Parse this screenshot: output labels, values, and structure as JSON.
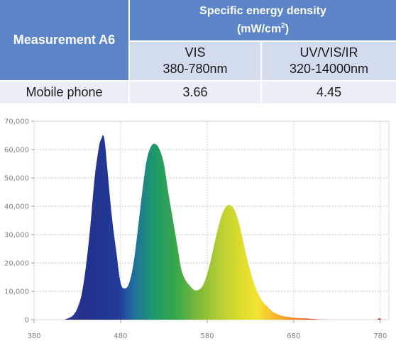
{
  "table": {
    "row_header": "Measurement A6",
    "group_header_line1": "Specific energy density",
    "group_header_line2_prefix": "(mW/cm",
    "group_header_line2_sup": "2",
    "group_header_line2_suffix": ")",
    "col1_line1": "VIS",
    "col1_line2": "380-780nm",
    "col2_line1": "UV/VIS/IR",
    "col2_line2": "320-14000nm",
    "row_label": "Mobile phone",
    "row_val1": "3.66",
    "row_val2": "4.45"
  },
  "colors": {
    "header_blue": "#5b85c8",
    "subheader": "#d2dcec",
    "row_bg": "#eaeff7"
  },
  "chart_data": {
    "type": "area",
    "xlabel": "",
    "ylabel": "",
    "xlim": [
      380,
      790
    ],
    "ylim": [
      0,
      70000
    ],
    "xticks": [
      380,
      480,
      580,
      680,
      780
    ],
    "yticks": [
      0,
      10000,
      20000,
      30000,
      40000,
      50000,
      60000,
      70000
    ],
    "xtick_labels": [
      "380",
      "480",
      "580",
      "680",
      "780"
    ],
    "ytick_labels": [
      "0",
      "10,000",
      "20,000",
      "30,000",
      "40,000",
      "50,000",
      "60,000",
      "70,000"
    ],
    "grid": "dashed",
    "fill": "visible-spectrum gradient",
    "x": [
      415,
      420,
      425,
      430,
      435,
      440,
      445,
      450,
      455,
      458,
      460,
      462,
      465,
      470,
      475,
      480,
      485,
      490,
      495,
      500,
      505,
      510,
      515,
      520,
      525,
      530,
      535,
      540,
      545,
      550,
      555,
      560,
      565,
      570,
      575,
      580,
      585,
      590,
      595,
      600,
      605,
      610,
      615,
      620,
      625,
      630,
      635,
      640,
      645,
      650,
      655,
      660,
      665,
      670,
      675,
      680,
      685,
      690,
      695,
      700,
      705,
      710,
      715,
      720,
      725,
      730
    ],
    "y": [
      0,
      600,
      1500,
      4000,
      9000,
      19000,
      33000,
      50000,
      61000,
      64000,
      65000,
      62000,
      52000,
      36000,
      24000,
      13000,
      11000,
      13000,
      20000,
      32000,
      45000,
      56000,
      61000,
      62000,
      60000,
      55000,
      45000,
      36000,
      27000,
      18000,
      14000,
      12000,
      10500,
      10500,
      12000,
      16000,
      22000,
      29000,
      35000,
      39000,
      40500,
      39500,
      36000,
      30000,
      23000,
      17000,
      12000,
      8500,
      6000,
      4500,
      3000,
      2100,
      1500,
      1100,
      900,
      700,
      600,
      500,
      450,
      300,
      200,
      100,
      50,
      0,
      0,
      0
    ],
    "minor_peak": {
      "x": 779,
      "y": 600
    }
  }
}
